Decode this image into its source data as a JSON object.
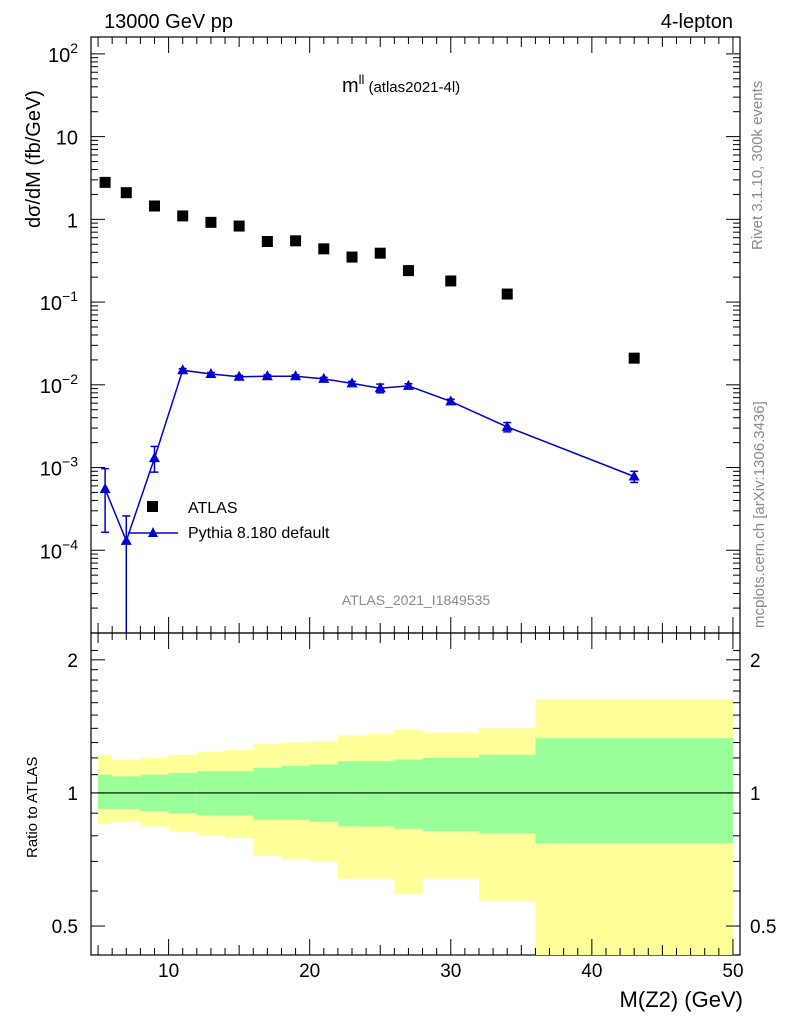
{
  "header": {
    "left": "13000 GeV pp",
    "right": "4-lepton"
  },
  "side_labels": {
    "top": "Rivet 3.1.10,  300k events",
    "bottom": "mcplots.cern.ch [arXiv:1306.3436]"
  },
  "chart_data": {
    "type": "scatter",
    "title_main": "m",
    "title_sup": "ll",
    "title_sub": "(atlas2021-4l)",
    "watermark": "ATLAS_2021_I1849535",
    "ylabel": "dσ/dM (fb/GeV)",
    "xlabel": "M(Z2) (GeV)",
    "ratio_ylabel": "Ratio to ATLAS",
    "xlim": [
      4.5,
      50.5
    ],
    "ylim": [
      1e-05,
      160
    ],
    "yscale": "log",
    "x_ticks": [
      "10",
      "20",
      "30",
      "40",
      "50"
    ],
    "y_ticks": [
      {
        "base": "10",
        "exp": "2",
        "value": 100
      },
      {
        "base": "10",
        "exp": "",
        "value": 10
      },
      {
        "base": "1",
        "exp": "",
        "value": 1
      },
      {
        "base": "10",
        "exp": "−1",
        "value": 0.1
      },
      {
        "base": "10",
        "exp": "−2",
        "value": 0.01
      },
      {
        "base": "10",
        "exp": "−3",
        "value": 0.001
      },
      {
        "base": "10",
        "exp": "−4",
        "value": 0.0001
      }
    ],
    "legend": {
      "position": "middle-left",
      "entries": [
        "ATLAS",
        "Pythia 8.180 default"
      ]
    },
    "series": [
      {
        "name": "ATLAS",
        "marker": "square",
        "color": "#000000",
        "x": [
          5.5,
          7,
          9,
          11,
          13,
          15,
          17,
          19,
          21,
          23,
          25,
          27,
          30,
          34,
          43
        ],
        "y": [
          2.8,
          2.1,
          1.45,
          1.1,
          0.92,
          0.83,
          0.54,
          0.55,
          0.44,
          0.35,
          0.39,
          0.24,
          0.18,
          0.125,
          0.021
        ]
      },
      {
        "name": "Pythia 8.180 default",
        "marker": "triangle",
        "color": "#0000d0",
        "x": [
          5.5,
          7,
          9,
          11,
          13,
          15,
          17,
          19,
          21,
          23,
          25,
          27,
          30,
          34,
          43
        ],
        "y": [
          0.00055,
          0.00013,
          0.0013,
          0.015,
          0.0135,
          0.0125,
          0.0127,
          0.0127,
          0.0118,
          0.0104,
          0.0091,
          0.0097,
          0.0063,
          0.0031,
          0.00078
        ],
        "err_low": [
          0.000385,
          0.00013,
          0.00042,
          0.0007,
          0.0006,
          0.0005,
          0.0005,
          0.0005,
          0.0005,
          0.0006,
          0.0011,
          0.0006,
          0.0004,
          0.0004,
          0.00012
        ],
        "err_high": [
          0.00042,
          0.00013,
          0.0005,
          0.0007,
          0.0006,
          0.0005,
          0.0005,
          0.0005,
          0.0005,
          0.0006,
          0.0011,
          0.0006,
          0.0004,
          0.0004,
          0.00012
        ]
      }
    ],
    "ratio": {
      "ylim": [
        0.43,
        2.3
      ],
      "y_ticks": [
        "0.5",
        "1",
        "2"
      ],
      "y_tick_values": [
        0.5,
        1,
        2
      ],
      "bins": [
        {
          "lo": 5,
          "hi": 6,
          "inner": [
            0.92,
            1.1
          ],
          "outer": [
            0.85,
            1.22
          ]
        },
        {
          "lo": 6,
          "hi": 8,
          "inner": [
            0.92,
            1.09
          ],
          "outer": [
            0.86,
            1.19
          ]
        },
        {
          "lo": 8,
          "hi": 10,
          "inner": [
            0.91,
            1.1
          ],
          "outer": [
            0.84,
            1.2
          ]
        },
        {
          "lo": 10,
          "hi": 12,
          "inner": [
            0.9,
            1.11
          ],
          "outer": [
            0.82,
            1.22
          ]
        },
        {
          "lo": 12,
          "hi": 14,
          "inner": [
            0.89,
            1.12
          ],
          "outer": [
            0.8,
            1.24
          ]
        },
        {
          "lo": 14,
          "hi": 16,
          "inner": [
            0.89,
            1.12
          ],
          "outer": [
            0.79,
            1.25
          ]
        },
        {
          "lo": 16,
          "hi": 18,
          "inner": [
            0.87,
            1.14
          ],
          "outer": [
            0.72,
            1.29
          ]
        },
        {
          "lo": 18,
          "hi": 20,
          "inner": [
            0.87,
            1.15
          ],
          "outer": [
            0.71,
            1.3
          ]
        },
        {
          "lo": 20,
          "hi": 22,
          "inner": [
            0.86,
            1.16
          ],
          "outer": [
            0.7,
            1.31
          ]
        },
        {
          "lo": 22,
          "hi": 24,
          "inner": [
            0.84,
            1.18
          ],
          "outer": [
            0.64,
            1.35
          ]
        },
        {
          "lo": 24,
          "hi": 26,
          "inner": [
            0.84,
            1.18
          ],
          "outer": [
            0.64,
            1.36
          ]
        },
        {
          "lo": 26,
          "hi": 28,
          "inner": [
            0.83,
            1.19
          ],
          "outer": [
            0.59,
            1.39
          ]
        },
        {
          "lo": 28,
          "hi": 32,
          "inner": [
            0.82,
            1.2
          ],
          "outer": [
            0.64,
            1.37
          ]
        },
        {
          "lo": 32,
          "hi": 36,
          "inner": [
            0.81,
            1.22
          ],
          "outer": [
            0.57,
            1.4
          ]
        },
        {
          "lo": 36,
          "hi": 50,
          "inner": [
            0.77,
            1.33
          ],
          "outer": [
            0.43,
            1.63
          ]
        }
      ]
    }
  },
  "colors": {
    "inner_band": "#99ff99",
    "outer_band": "#ffff99",
    "mc": "#0000d0",
    "data": "#000000"
  }
}
